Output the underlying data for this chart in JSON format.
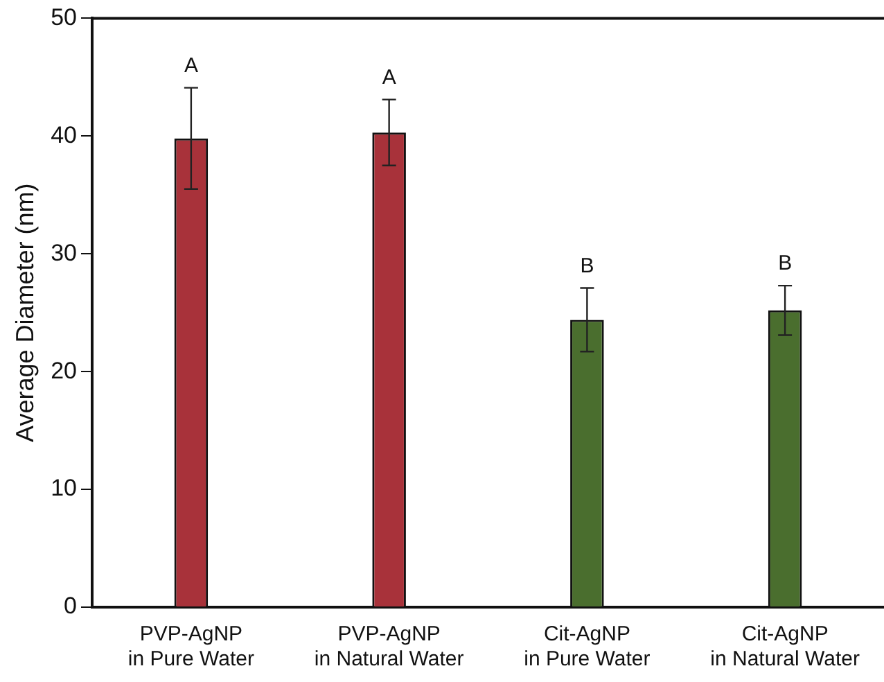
{
  "chart_data": {
    "type": "bar",
    "ylabel": "Average Diameter (nm)",
    "categories": [
      "PVP-AgNP\nin Pure Water",
      "PVP-AgNP\nin Natural Water",
      "Cit-AgNP\nin Pure Water",
      "Cit-AgNP\nin Natural Water"
    ],
    "values": [
      39.8,
      40.3,
      24.4,
      25.2
    ],
    "colors": [
      "#a8323a",
      "#a8323a",
      "#4a6e2e",
      "#4a6e2e"
    ],
    "errors": [
      4.3,
      2.8,
      2.7,
      2.1
    ],
    "ylim": [
      0,
      50
    ],
    "yticks": [
      0,
      10,
      20,
      30,
      40,
      50
    ],
    "grid": false,
    "legend": false,
    "annotations": [
      "A",
      "A",
      "B",
      "B"
    ]
  }
}
